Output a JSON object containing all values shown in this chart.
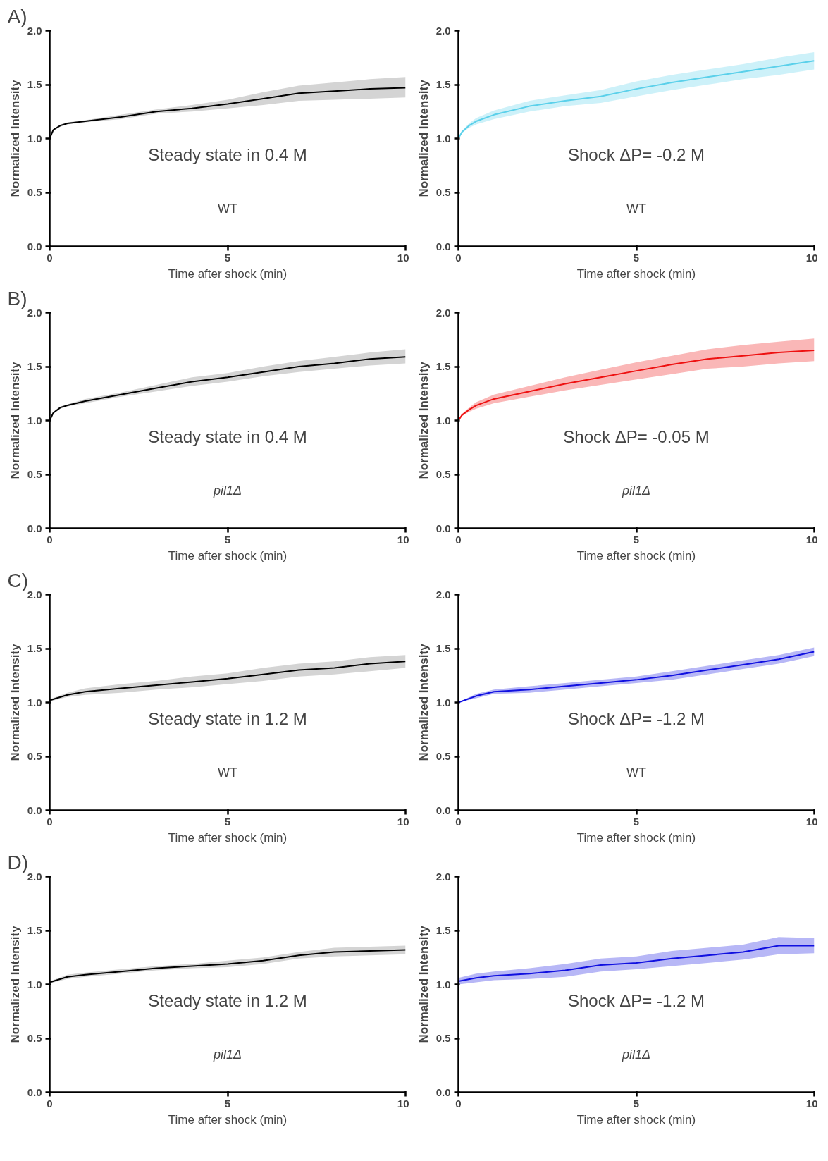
{
  "chart_data": [
    {
      "type": "line",
      "title": "A)",
      "xlabel": "Time after shock (min)",
      "ylabel": "Normalized Intensity",
      "x": [
        0,
        0.1,
        0.3,
        0.5,
        1,
        2,
        3,
        4,
        5,
        6,
        7,
        8,
        9,
        10
      ],
      "xlim": [
        0,
        10
      ],
      "ylim": [
        0,
        2
      ],
      "xticks": [
        0,
        5,
        10
      ],
      "yticks": [
        {
          "value": 0,
          "label": "0.0"
        },
        {
          "value": 0.5,
          "label": "0.5"
        },
        {
          "value": 1,
          "label": "1.0"
        },
        {
          "value": 1.5,
          "label": "1.5"
        },
        {
          "value": 2,
          "label": "2.0"
        }
      ],
      "annotations": [
        "Steady state in 0.4 M",
        "WT"
      ],
      "series": [
        {
          "color": "#000000",
          "values": [
            1.0,
            1.08,
            1.12,
            1.14,
            1.16,
            1.2,
            1.25,
            1.28,
            1.32,
            1.37,
            1.42,
            1.44,
            1.46,
            1.47
          ],
          "lower": [
            1.0,
            1.07,
            1.11,
            1.13,
            1.15,
            1.18,
            1.23,
            1.25,
            1.28,
            1.31,
            1.35,
            1.36,
            1.37,
            1.38
          ],
          "upper": [
            1.0,
            1.09,
            1.13,
            1.15,
            1.17,
            1.22,
            1.27,
            1.31,
            1.36,
            1.43,
            1.49,
            1.52,
            1.55,
            1.57
          ]
        }
      ]
    },
    {
      "type": "line",
      "xlabel": "Time after shock (min)",
      "ylabel": "Normalized Intensity",
      "x": [
        0,
        0.1,
        0.3,
        0.5,
        1,
        2,
        3,
        4,
        5,
        6,
        7,
        8,
        9,
        10
      ],
      "xlim": [
        0,
        10
      ],
      "ylim": [
        0,
        2
      ],
      "xticks": [
        0,
        5,
        10
      ],
      "yticks": [
        {
          "value": 0,
          "label": "0.0"
        },
        {
          "value": 0.5,
          "label": "0.5"
        },
        {
          "value": 1,
          "label": "1.0"
        },
        {
          "value": 1.5,
          "label": "1.5"
        },
        {
          "value": 2,
          "label": "2.0"
        }
      ],
      "annotations": [
        "Shock ΔP= -0.2 M",
        "WT"
      ],
      "series": [
        {
          "color": "#5bd0ea",
          "values": [
            1.0,
            1.06,
            1.12,
            1.16,
            1.22,
            1.3,
            1.35,
            1.39,
            1.46,
            1.52,
            1.57,
            1.62,
            1.67,
            1.72
          ],
          "lower": [
            1.0,
            1.05,
            1.1,
            1.13,
            1.18,
            1.25,
            1.3,
            1.33,
            1.39,
            1.45,
            1.5,
            1.55,
            1.59,
            1.64
          ],
          "upper": [
            1.0,
            1.07,
            1.14,
            1.19,
            1.26,
            1.35,
            1.4,
            1.45,
            1.53,
            1.59,
            1.64,
            1.69,
            1.75,
            1.8
          ]
        }
      ]
    },
    {
      "type": "line",
      "title": "B)",
      "xlabel": "Time after shock (min)",
      "ylabel": "Normalized Intensity",
      "x": [
        0,
        0.1,
        0.3,
        0.5,
        1,
        2,
        3,
        4,
        5,
        6,
        7,
        8,
        9,
        10
      ],
      "xlim": [
        0,
        10
      ],
      "ylim": [
        0,
        2
      ],
      "xticks": [
        0,
        5,
        10
      ],
      "yticks": [
        {
          "value": 0,
          "label": "0.0"
        },
        {
          "value": 0.5,
          "label": "0.5"
        },
        {
          "value": 1,
          "label": "1.0"
        },
        {
          "value": 1.5,
          "label": "1.5"
        },
        {
          "value": 2,
          "label": "2.0"
        }
      ],
      "annotations": [
        "Steady state in 0.4 M",
        "pil1Δ"
      ],
      "series": [
        {
          "color": "#000000",
          "values": [
            1.0,
            1.07,
            1.12,
            1.14,
            1.18,
            1.24,
            1.3,
            1.36,
            1.4,
            1.45,
            1.5,
            1.53,
            1.57,
            1.59
          ],
          "lower": [
            1.0,
            1.06,
            1.11,
            1.13,
            1.16,
            1.22,
            1.27,
            1.32,
            1.36,
            1.41,
            1.45,
            1.48,
            1.51,
            1.53
          ],
          "upper": [
            1.0,
            1.08,
            1.13,
            1.15,
            1.2,
            1.26,
            1.33,
            1.4,
            1.44,
            1.5,
            1.55,
            1.59,
            1.63,
            1.66
          ]
        }
      ]
    },
    {
      "type": "line",
      "xlabel": "Time after shock (min)",
      "ylabel": "Normalized Intensity",
      "x": [
        0,
        0.1,
        0.3,
        0.5,
        1,
        2,
        3,
        4,
        5,
        6,
        7,
        8,
        9,
        10
      ],
      "xlim": [
        0,
        10
      ],
      "ylim": [
        0,
        2
      ],
      "xticks": [
        0,
        5,
        10
      ],
      "yticks": [
        {
          "value": 0,
          "label": "0.0"
        },
        {
          "value": 0.5,
          "label": "0.5"
        },
        {
          "value": 1,
          "label": "1.0"
        },
        {
          "value": 1.5,
          "label": "1.5"
        },
        {
          "value": 2,
          "label": "2.0"
        }
      ],
      "annotations": [
        "Shock ΔP= -0.05 M",
        "pil1Δ"
      ],
      "series": [
        {
          "color": "#ee1111",
          "values": [
            1.0,
            1.05,
            1.1,
            1.14,
            1.2,
            1.27,
            1.34,
            1.4,
            1.46,
            1.52,
            1.57,
            1.6,
            1.63,
            1.65
          ],
          "lower": [
            1.0,
            1.04,
            1.08,
            1.11,
            1.16,
            1.22,
            1.28,
            1.33,
            1.38,
            1.43,
            1.48,
            1.5,
            1.53,
            1.55
          ],
          "upper": [
            1.0,
            1.06,
            1.12,
            1.17,
            1.24,
            1.32,
            1.4,
            1.47,
            1.54,
            1.6,
            1.66,
            1.7,
            1.73,
            1.76
          ]
        }
      ]
    },
    {
      "type": "line",
      "title": "C)",
      "xlabel": "Time after shock (min)",
      "ylabel": "Normalized Intensity",
      "x": [
        0,
        0.5,
        1,
        2,
        3,
        4,
        5,
        6,
        7,
        8,
        9,
        10
      ],
      "xlim": [
        0,
        10
      ],
      "ylim": [
        0,
        2
      ],
      "xticks": [
        0,
        5,
        10
      ],
      "yticks": [
        {
          "value": 0,
          "label": "0.0"
        },
        {
          "value": 0.5,
          "label": "0.5"
        },
        {
          "value": 1,
          "label": "1.0"
        },
        {
          "value": 1.5,
          "label": "1.5"
        },
        {
          "value": 2,
          "label": "2.0"
        }
      ],
      "annotations": [
        "Steady state in 1.2 M",
        "WT"
      ],
      "series": [
        {
          "color": "#000000",
          "values": [
            1.02,
            1.07,
            1.1,
            1.13,
            1.16,
            1.19,
            1.22,
            1.26,
            1.3,
            1.32,
            1.36,
            1.38
          ],
          "lower": [
            1.01,
            1.05,
            1.07,
            1.09,
            1.12,
            1.14,
            1.17,
            1.2,
            1.24,
            1.26,
            1.29,
            1.32
          ],
          "upper": [
            1.03,
            1.09,
            1.13,
            1.17,
            1.2,
            1.24,
            1.27,
            1.32,
            1.36,
            1.38,
            1.42,
            1.44
          ]
        }
      ]
    },
    {
      "type": "line",
      "xlabel": "Time after shock (min)",
      "ylabel": "Normalized Intensity",
      "x": [
        0,
        0.5,
        1,
        2,
        3,
        4,
        5,
        6,
        7,
        8,
        9,
        10
      ],
      "xlim": [
        0,
        10
      ],
      "ylim": [
        0,
        2
      ],
      "xticks": [
        0,
        5,
        10
      ],
      "yticks": [
        {
          "value": 0,
          "label": "0.0"
        },
        {
          "value": 0.5,
          "label": "0.5"
        },
        {
          "value": 1,
          "label": "1.0"
        },
        {
          "value": 1.5,
          "label": "1.5"
        },
        {
          "value": 2,
          "label": "2.0"
        }
      ],
      "annotations": [
        "Shock ΔP= -1.2 M",
        "WT"
      ],
      "series": [
        {
          "color": "#1010e0",
          "values": [
            1.0,
            1.06,
            1.1,
            1.12,
            1.15,
            1.18,
            1.21,
            1.25,
            1.3,
            1.35,
            1.4,
            1.47
          ],
          "lower": [
            1.0,
            1.04,
            1.08,
            1.09,
            1.12,
            1.15,
            1.18,
            1.21,
            1.26,
            1.31,
            1.36,
            1.43
          ],
          "upper": [
            1.0,
            1.08,
            1.12,
            1.15,
            1.18,
            1.21,
            1.24,
            1.29,
            1.34,
            1.39,
            1.44,
            1.51
          ]
        }
      ]
    },
    {
      "type": "line",
      "title": "D)",
      "xlabel": "Time after shock (min)",
      "ylabel": "Normalized Intensity",
      "x": [
        0,
        0.5,
        1,
        2,
        3,
        4,
        5,
        6,
        7,
        8,
        9,
        10
      ],
      "xlim": [
        0,
        10
      ],
      "ylim": [
        0,
        2
      ],
      "xticks": [
        0,
        5,
        10
      ],
      "yticks": [
        {
          "value": 0,
          "label": "0.0"
        },
        {
          "value": 0.5,
          "label": "0.5"
        },
        {
          "value": 1,
          "label": "1.0"
        },
        {
          "value": 1.5,
          "label": "1.5"
        },
        {
          "value": 2,
          "label": "2.0"
        }
      ],
      "annotations": [
        "Steady state in 1.2 M",
        "pil1Δ"
      ],
      "series": [
        {
          "color": "#000000",
          "values": [
            1.02,
            1.07,
            1.09,
            1.12,
            1.15,
            1.17,
            1.19,
            1.22,
            1.27,
            1.3,
            1.31,
            1.32
          ],
          "lower": [
            1.01,
            1.05,
            1.07,
            1.1,
            1.13,
            1.15,
            1.16,
            1.19,
            1.24,
            1.26,
            1.27,
            1.28
          ],
          "upper": [
            1.03,
            1.09,
            1.11,
            1.14,
            1.17,
            1.19,
            1.22,
            1.25,
            1.3,
            1.34,
            1.35,
            1.36
          ]
        }
      ]
    },
    {
      "type": "line",
      "xlabel": "Time after shock (min)",
      "ylabel": "Normalized Intensity",
      "x": [
        0,
        0.5,
        1,
        2,
        3,
        4,
        5,
        6,
        7,
        8,
        9,
        10
      ],
      "xlim": [
        0,
        10
      ],
      "ylim": [
        0,
        2
      ],
      "xticks": [
        0,
        5,
        10
      ],
      "yticks": [
        {
          "value": 0,
          "label": "0.0"
        },
        {
          "value": 0.5,
          "label": "0.5"
        },
        {
          "value": 1,
          "label": "1.0"
        },
        {
          "value": 1.5,
          "label": "1.5"
        },
        {
          "value": 2,
          "label": "2.0"
        }
      ],
      "annotations": [
        "Shock ΔP= -1.2 M",
        "pil1Δ"
      ],
      "series": [
        {
          "color": "#1010e0",
          "values": [
            1.03,
            1.06,
            1.08,
            1.1,
            1.13,
            1.18,
            1.2,
            1.24,
            1.27,
            1.3,
            1.36,
            1.36
          ],
          "lower": [
            1.0,
            1.02,
            1.04,
            1.05,
            1.07,
            1.12,
            1.14,
            1.17,
            1.2,
            1.23,
            1.28,
            1.29
          ],
          "upper": [
            1.06,
            1.1,
            1.12,
            1.15,
            1.19,
            1.24,
            1.26,
            1.31,
            1.34,
            1.37,
            1.44,
            1.43
          ]
        }
      ]
    }
  ]
}
